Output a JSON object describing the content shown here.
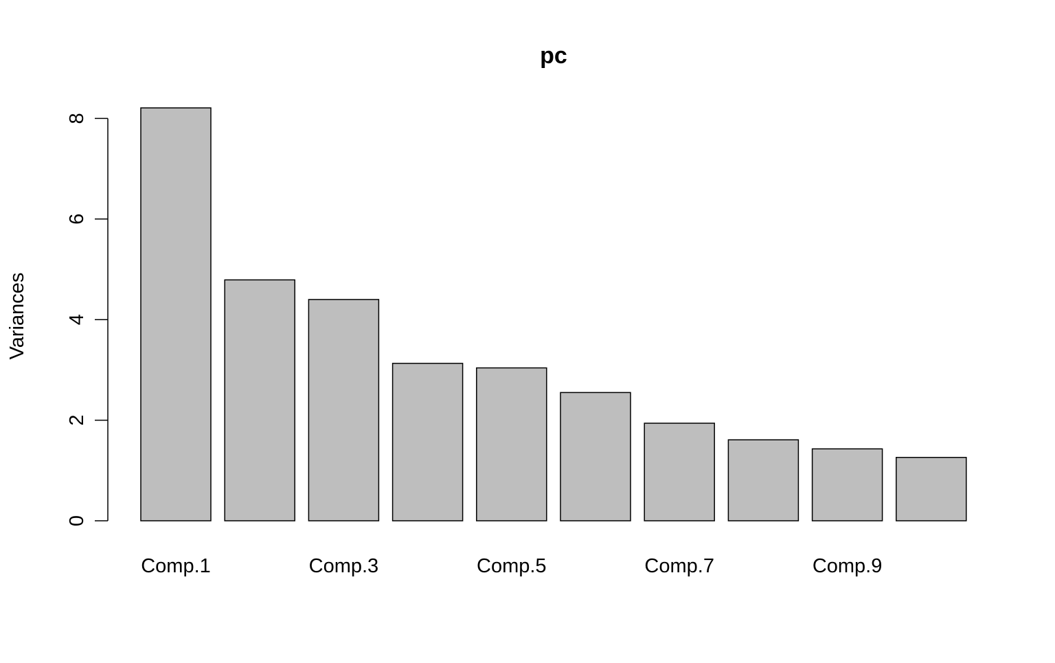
{
  "chart_data": {
    "type": "bar",
    "title": "pc",
    "xlabel": "",
    "ylabel": "Variances",
    "categories": [
      "Comp.1",
      "Comp.2",
      "Comp.3",
      "Comp.4",
      "Comp.5",
      "Comp.6",
      "Comp.7",
      "Comp.8",
      "Comp.9",
      "Comp.10"
    ],
    "category_labels_shown": [
      "Comp.1",
      "",
      "Comp.3",
      "",
      "Comp.5",
      "",
      "Comp.7",
      "",
      "Comp.9",
      ""
    ],
    "values": [
      8.21,
      4.79,
      4.4,
      3.13,
      3.04,
      2.55,
      1.94,
      1.61,
      1.43,
      1.26
    ],
    "ylim": [
      0,
      8.21
    ],
    "yticks": [
      0,
      2,
      4,
      6,
      8
    ],
    "ytick_labels": [
      "0",
      "2",
      "4",
      "6",
      "8"
    ],
    "grid": false,
    "legend": "none",
    "bar_fill": "#bebebe",
    "bar_stroke": "#000000"
  }
}
